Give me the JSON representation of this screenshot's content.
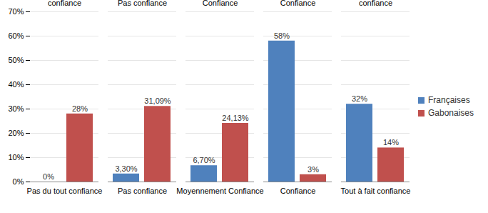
{
  "chart_data": {
    "type": "bar",
    "categories": [
      "Pas du tout confiance",
      "Pas confiance",
      "Moyennement Confiance",
      "Confiance",
      "Tout à fait confiance"
    ],
    "series": [
      {
        "name": "Françaises",
        "color": "#4F81BD",
        "values": [
          0,
          3.3,
          6.7,
          58,
          32
        ],
        "value_labels": [
          "0%",
          "3,30%",
          "6,70%",
          "58%",
          "32%"
        ]
      },
      {
        "name": "Gabonaises",
        "color": "#C0504D",
        "values": [
          28,
          31.09,
          24.13,
          3,
          14
        ],
        "value_labels": [
          "28%",
          "31,09%",
          "24,13%",
          "3%",
          "14%"
        ]
      }
    ],
    "ylim": [
      0,
      70
    ],
    "yticks": [
      {
        "value": 0,
        "label": "0%"
      },
      {
        "value": 10,
        "label": "10%"
      },
      {
        "value": 20,
        "label": "20%"
      },
      {
        "value": 30,
        "label": "30%"
      },
      {
        "value": 40,
        "label": "40%"
      },
      {
        "value": 50,
        "label": "50%"
      },
      {
        "value": 60,
        "label": "60%"
      },
      {
        "value": 70,
        "label": "70%"
      }
    ],
    "grid": true,
    "legend": "right",
    "data_labels": true
  }
}
